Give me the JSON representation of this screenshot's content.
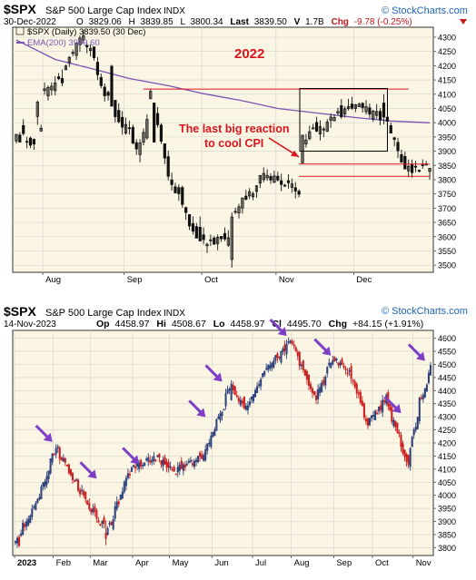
{
  "colors": {
    "panel_bg": "#fbf6e3",
    "grid": "#d2d2d2",
    "border": "#333333",
    "up_black": "#111111",
    "down_black": "#111111",
    "down_red": "#cc1f1f",
    "up_blue": "#2a3f7a",
    "ema": "#7b52b4",
    "annotation_red": "#d9141d",
    "arrow_purple": "#7e3fc6",
    "stockcharts_blue": "#1b63b8",
    "header_red": "#c4161c"
  },
  "top_chart": {
    "symbol": "$SPX",
    "name": "S&P 500 Large Cap Index",
    "exchange": "INDX",
    "brand": "© StockCharts.com",
    "date": "30-Dec-2022",
    "ohlc": {
      "open_label": "O",
      "open": "3829.06",
      "high_label": "H",
      "high": "3839.85",
      "low_label": "L",
      "low": "3800.34",
      "last_label": "Last",
      "last": "3839.50",
      "volume_label": "V",
      "volume": "1.7B",
      "change_label": "Chg",
      "change": "-9.78 (-0.25%)"
    },
    "legend_price": "$SPX (Daily) 3839.50 (30 Dec)",
    "legend_ema": "EMA(200) 3999.60",
    "year_label": "2022",
    "annotation_line1": "The last big reaction",
    "annotation_line2": "to cool CPI"
  },
  "bottom_chart": {
    "symbol": "$SPX",
    "name": "S&P 500 Large Cap Index",
    "exchange": "INDX",
    "brand": "© StockCharts.com",
    "date": "14-Nov-2023",
    "ohlc": {
      "open_label": "Op",
      "open": "4458.97",
      "high_label": "Hi",
      "high": "4508.67",
      "low_label": "Lo",
      "low": "4458.97",
      "close_label": "Cl",
      "close": "4495.70",
      "change_label": "Chg",
      "change": "+84.15 (+1.91%)"
    },
    "year_label": "2023"
  },
  "chart_data": [
    {
      "type": "candlestick",
      "title": "$SPX S&P 500 Large Cap Index INDX",
      "series": [
        {
          "name": "$SPX (Daily) 3839.50 (30 Dec)",
          "bars_per_day": "daily",
          "x_start": "2022-07-20",
          "x_end": "2022-12-30",
          "ohlc": [
            {
              "x": "2022-07-20",
              "o": 3936,
              "h": 3960,
              "l": 3927,
              "c": 3959
            },
            {
              "x": "2022-07-22",
              "o": 3990,
              "h": 4012,
              "l": 3955,
              "c": 3962
            },
            {
              "x": "2022-07-26",
              "o": 3946,
              "h": 3951,
              "l": 3910,
              "c": 3921
            },
            {
              "x": "2022-07-28",
              "o": 4022,
              "h": 4078,
              "l": 3992,
              "c": 4072
            },
            {
              "x": "2022-08-01",
              "o": 4113,
              "h": 4141,
              "l": 4098,
              "c": 4119
            },
            {
              "x": "2022-08-08",
              "o": 4155,
              "h": 4187,
              "l": 4128,
              "c": 4140
            },
            {
              "x": "2022-08-12",
              "o": 4236,
              "h": 4280,
              "l": 4220,
              "c": 4280
            },
            {
              "x": "2022-08-16",
              "o": 4290,
              "h": 4325,
              "l": 4278,
              "c": 4305
            },
            {
              "x": "2022-08-19",
              "o": 4266,
              "h": 4266,
              "l": 4218,
              "c": 4228
            },
            {
              "x": "2022-08-26",
              "o": 4198,
              "h": 4203,
              "l": 4058,
              "c": 4058
            },
            {
              "x": "2022-09-06",
              "o": 3930,
              "h": 3942,
              "l": 3887,
              "c": 3908
            },
            {
              "x": "2022-09-12",
              "o": 4084,
              "h": 4119,
              "l": 4083,
              "c": 4110
            },
            {
              "x": "2022-09-13",
              "o": 4069,
              "h": 4070,
              "l": 3932,
              "c": 3932
            },
            {
              "x": "2022-09-30",
              "o": 3633,
              "h": 3671,
              "l": 3584,
              "c": 3585
            },
            {
              "x": "2022-10-13",
              "o": 3520,
              "h": 3685,
              "l": 3491,
              "c": 3669
            },
            {
              "x": "2022-11-10",
              "o": 3859,
              "h": 3958,
              "l": 3859,
              "c": 3956
            },
            {
              "x": "2022-12-13",
              "o": 4069,
              "h": 4100,
              "l": 3994,
              "c": 4020
            },
            {
              "x": "2022-12-30",
              "o": 3829,
              "h": 3840,
              "l": 3800,
              "c": 3840
            }
          ]
        },
        {
          "name": "EMA(200) 3999.60",
          "type": "line",
          "x_start": "2022-07-20",
          "x_end": "2022-12-30",
          "values": [
            4290,
            4222,
            4191,
            4155,
            4130,
            4102,
            4077,
            4050,
            4034,
            4018,
            4006,
            3999.6
          ]
        }
      ],
      "xlabel": "",
      "ylabel": "",
      "x_ticks": [
        "Aug",
        "Sep",
        "Oct",
        "Nov",
        "Dec"
      ],
      "y_ticks": [
        3500,
        3550,
        3600,
        3650,
        3700,
        3750,
        3800,
        3850,
        3900,
        3950,
        4000,
        4050,
        4100,
        4150,
        4200,
        4250,
        4300
      ],
      "ylim": [
        3475,
        4335
      ],
      "grid": true,
      "legend": "top-left",
      "annotations": [
        {
          "text": "2022"
        },
        {
          "text": "The last big reaction to cool CPI"
        },
        {
          "type": "hline",
          "y": 4118
        },
        {
          "type": "hline",
          "y": 3855
        },
        {
          "type": "hline",
          "y": 3812
        },
        {
          "type": "box",
          "x": [
            "2022-11-10",
            "2022-12-13"
          ],
          "y": [
            3900,
            4120
          ]
        }
      ]
    },
    {
      "type": "candlestick",
      "title": "$SPX S&P 500 Large Cap Index INDX",
      "series": [
        {
          "name": "$SPX",
          "x_start": "2023-01-03",
          "x_end": "2023-11-14",
          "ohlc": [
            {
              "x": "2023-01-05",
              "o": 3840,
              "h": 3850,
              "l": 3802,
              "c": 3808
            },
            {
              "x": "2023-02-02",
              "o": 4158,
              "h": 4195,
              "l": 4141,
              "c": 4179
            },
            {
              "x": "2023-03-13",
              "o": 3835,
              "h": 3905,
              "l": 3809,
              "c": 3855
            },
            {
              "x": "2023-06-15",
              "o": 4365,
              "h": 4439,
              "l": 4362,
              "c": 4425
            },
            {
              "x": "2023-07-31",
              "o": 4584,
              "h": 4595,
              "l": 4578,
              "c": 4589
            },
            {
              "x": "2023-10-27",
              "o": 4152,
              "h": 4156,
              "l": 4103,
              "c": 4117
            },
            {
              "x": "2023-11-14",
              "o": 4459,
              "h": 4509,
              "l": 4459,
              "c": 4496
            }
          ]
        }
      ],
      "xlabel": "",
      "ylabel": "",
      "x_ticks": [
        "2023",
        "Feb",
        "Mar",
        "Apr",
        "May",
        "Jun",
        "Jul",
        "Aug",
        "Sep",
        "Oct",
        "Nov"
      ],
      "y_ticks": [
        3800,
        3850,
        3900,
        3950,
        4000,
        4050,
        4100,
        4150,
        4200,
        4250,
        4300,
        4350,
        4400,
        4450,
        4500,
        4550,
        4600
      ],
      "ylim": [
        3770,
        4630
      ],
      "grid": true,
      "annotations": [
        {
          "type": "arrow",
          "x": "2023-02-02",
          "y": 4190
        },
        {
          "type": "arrow",
          "x": "2023-03-08",
          "y": 4050
        },
        {
          "type": "arrow",
          "x": "2023-04-10",
          "y": 4105
        },
        {
          "type": "arrow",
          "x": "2023-05-30",
          "y": 4285
        },
        {
          "type": "arrow",
          "x": "2023-06-12",
          "y": 4420
        },
        {
          "type": "arrow",
          "x": "2023-07-31",
          "y": 4595
        },
        {
          "type": "arrow",
          "x": "2023-09-01",
          "y": 4520
        },
        {
          "type": "arrow",
          "x": "2023-10-25",
          "y": 4300
        },
        {
          "type": "arrow",
          "x": "2023-11-13",
          "y": 4500
        }
      ]
    }
  ]
}
